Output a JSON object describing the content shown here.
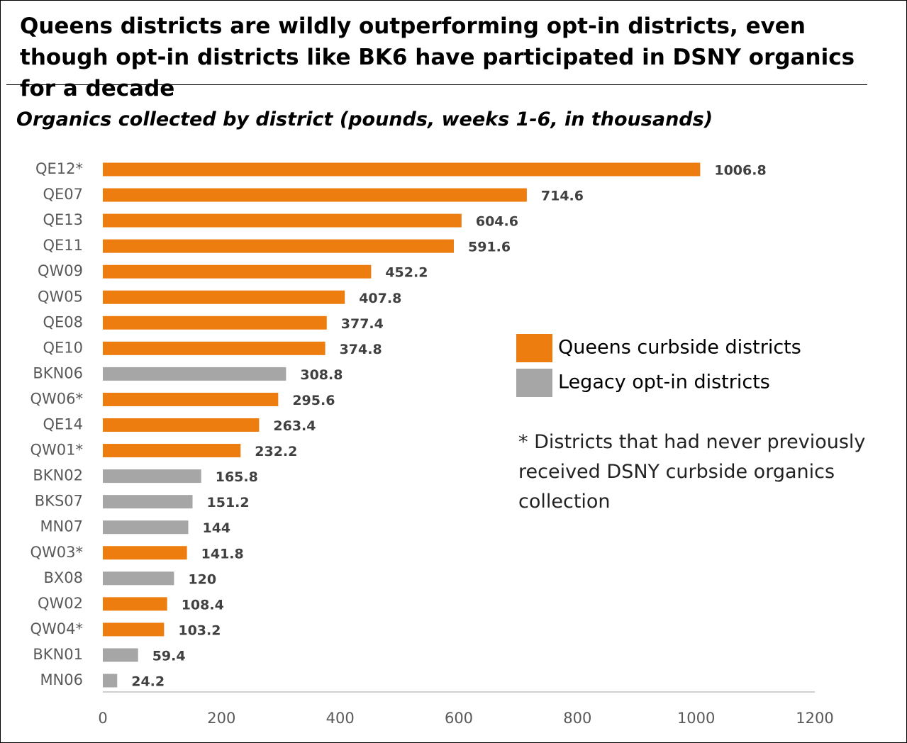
{
  "chart_data": {
    "type": "bar",
    "orientation": "horizontal",
    "title": "Queens districts are wildly outperforming opt-in districts, even though opt-in districts like BK6 have participated in DSNY organics for a decade",
    "subtitle": "Organics collected by district (pounds, weeks 1-6, in thousands)",
    "note": "*  Districts that had never previously received DSNY curbside organics collection",
    "categories": [
      "QE12*",
      "QE07",
      "QE13",
      "QE11",
      "QW09",
      "QW05",
      "QE08",
      "QE10",
      "BKN06",
      "QW06*",
      "QE14",
      "QW01*",
      "BKN02",
      "BKS07",
      "MN07",
      "QW03*",
      "BX08",
      "QW02",
      "QW04*",
      "BKN01",
      "MN06"
    ],
    "series": [
      {
        "name": "Queens curbside districts",
        "color": "#ed7d0f",
        "values": [
          1006.8,
          714.6,
          604.6,
          591.6,
          452.2,
          407.8,
          377.4,
          374.8,
          null,
          295.6,
          263.4,
          232.2,
          null,
          null,
          null,
          141.8,
          null,
          108.4,
          103.2,
          null,
          null
        ]
      },
      {
        "name": "Legacy opt-in districts",
        "color": "#a6a6a6",
        "values": [
          null,
          null,
          null,
          null,
          null,
          null,
          null,
          null,
          308.8,
          null,
          null,
          null,
          165.8,
          151.2,
          144,
          null,
          120,
          null,
          null,
          59.4,
          24.2
        ]
      }
    ],
    "xlim": [
      0,
      1200
    ],
    "xticks": [
      0,
      200,
      400,
      600,
      800,
      1000,
      1200
    ],
    "grid": false
  }
}
